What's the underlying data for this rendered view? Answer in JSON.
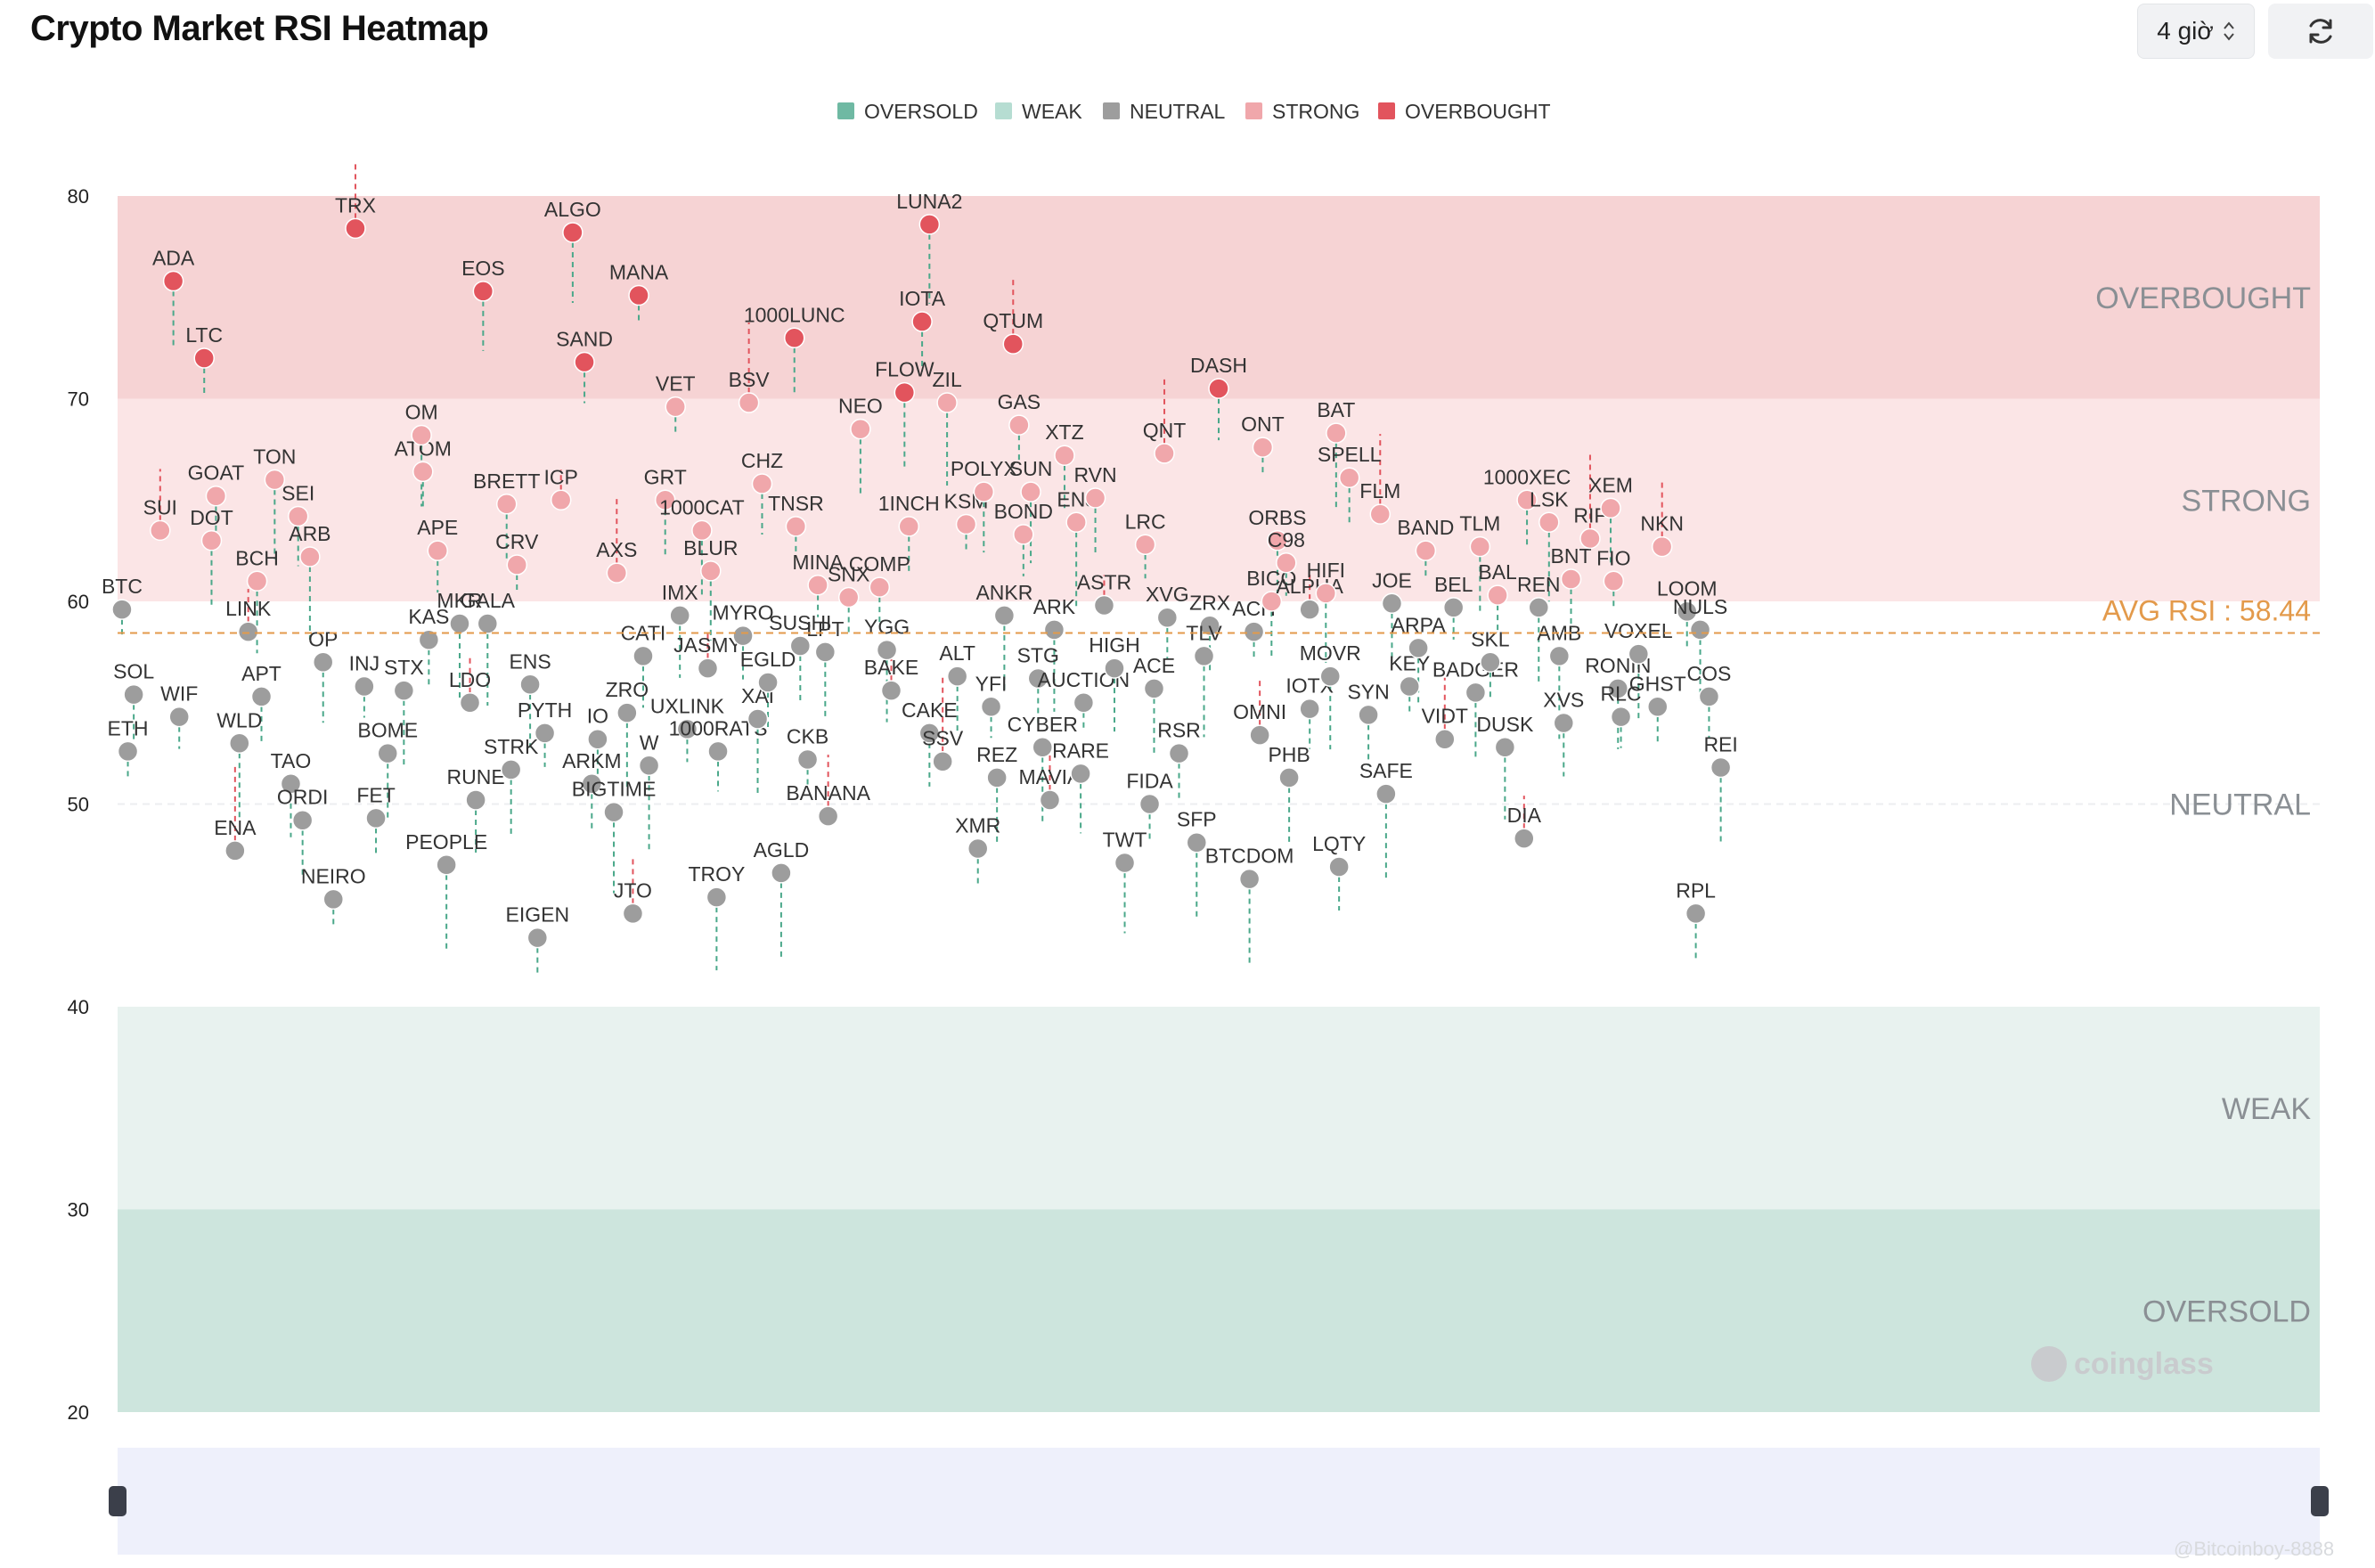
{
  "header": {
    "title": "Crypto Market RSI Heatmap",
    "interval": "4 giờ"
  },
  "icons": {
    "interval": "chevron-updown-icon",
    "refresh": "refresh-icon",
    "logo": "coinglass-logo-icon"
  },
  "colors": {
    "oversold": "#6fb9a3",
    "weak": "#b6ddd2",
    "neutral": "#9d9d9d",
    "strong": "#f0a7ab",
    "overbought": "#e2545d",
    "avg_line": "#e39a4b",
    "band_overbought": "#f6d3d4",
    "band_strong": "#fbe5e6",
    "band_weak": "#e8f2ef",
    "band_oversold": "#cde5dd"
  },
  "watermark": {
    "brand": "coinglass",
    "footer": "@Bitcoinboy-8888"
  },
  "chart_data": {
    "type": "scatter",
    "title": "Crypto Market RSI Heatmap",
    "ylim": [
      20,
      80
    ],
    "yticks": [
      20,
      30,
      40,
      50,
      60,
      70,
      80
    ],
    "legend_position": "top-center",
    "legend": [
      "OVERSOLD",
      "WEAK",
      "NEUTRAL",
      "STRONG",
      "OVERBOUGHT"
    ],
    "zones": [
      {
        "name": "OVERBOUGHT",
        "from": 70,
        "to": 80
      },
      {
        "name": "STRONG",
        "from": 60,
        "to": 70
      },
      {
        "name": "NEUTRAL",
        "from": 40,
        "to": 60
      },
      {
        "name": "WEAK",
        "from": 30,
        "to": 40
      },
      {
        "name": "OVERSOLD",
        "from": 20,
        "to": 30
      }
    ],
    "avg_rsi": 58.44,
    "avg_label": "AVG RSI : 58.44",
    "x_range": [
      0,
      1500
    ],
    "points": [
      {
        "label": "BTC",
        "x": 3,
        "rsi": 59.6
      },
      {
        "label": "SOL",
        "x": 11,
        "rsi": 55.4
      },
      {
        "label": "ETH",
        "x": 7,
        "rsi": 52.6
      },
      {
        "label": "SUI",
        "x": 29,
        "rsi": 63.5
      },
      {
        "label": "WIF",
        "x": 42,
        "rsi": 54.3
      },
      {
        "label": "ADA",
        "x": 38,
        "rsi": 75.8
      },
      {
        "label": "LTC",
        "x": 59,
        "rsi": 72.0
      },
      {
        "label": "DOT",
        "x": 64,
        "rsi": 63.0
      },
      {
        "label": "GOAT",
        "x": 67,
        "rsi": 65.2
      },
      {
        "label": "BCH",
        "x": 95,
        "rsi": 61.0
      },
      {
        "label": "LINK",
        "x": 89,
        "rsi": 58.5
      },
      {
        "label": "WLD",
        "x": 83,
        "rsi": 53.0
      },
      {
        "label": "APT",
        "x": 98,
        "rsi": 55.3
      },
      {
        "label": "TON",
        "x": 107,
        "rsi": 66.0
      },
      {
        "label": "SEI",
        "x": 123,
        "rsi": 64.2
      },
      {
        "label": "ARB",
        "x": 131,
        "rsi": 62.2
      },
      {
        "label": "TAO",
        "x": 118,
        "rsi": 51.0
      },
      {
        "label": "ENA",
        "x": 80,
        "rsi": 47.7
      },
      {
        "label": "ORDI",
        "x": 126,
        "rsi": 49.2
      },
      {
        "label": "NEIRO",
        "x": 147,
        "rsi": 45.3
      },
      {
        "label": "OP",
        "x": 140,
        "rsi": 57.0
      },
      {
        "label": "INJ",
        "x": 168,
        "rsi": 55.8
      },
      {
        "label": "BOME",
        "x": 184,
        "rsi": 52.5
      },
      {
        "label": "FET",
        "x": 176,
        "rsi": 49.3
      },
      {
        "label": "TRX",
        "x": 162,
        "rsi": 78.4
      },
      {
        "label": "ATOM",
        "x": 208,
        "rsi": 66.4
      },
      {
        "label": "OM",
        "x": 207,
        "rsi": 68.2
      },
      {
        "label": "APE",
        "x": 218,
        "rsi": 62.5
      },
      {
        "label": "STX",
        "x": 195,
        "rsi": 55.6
      },
      {
        "label": "KAS",
        "x": 212,
        "rsi": 58.1
      },
      {
        "label": "MKR",
        "x": 233,
        "rsi": 58.9
      },
      {
        "label": "LDO",
        "x": 240,
        "rsi": 55.0
      },
      {
        "label": "GALA",
        "x": 252,
        "rsi": 58.9
      },
      {
        "label": "RUNE",
        "x": 244,
        "rsi": 50.2
      },
      {
        "label": "PEOPLE",
        "x": 224,
        "rsi": 47.0
      },
      {
        "label": "BRETT",
        "x": 265,
        "rsi": 64.8
      },
      {
        "label": "CRV",
        "x": 272,
        "rsi": 61.8
      },
      {
        "label": "EOS",
        "x": 249,
        "rsi": 75.3
      },
      {
        "label": "ICP",
        "x": 302,
        "rsi": 65.0
      },
      {
        "label": "ENS",
        "x": 281,
        "rsi": 55.9
      },
      {
        "label": "PYTH",
        "x": 291,
        "rsi": 53.5
      },
      {
        "label": "STRK",
        "x": 268,
        "rsi": 51.7
      },
      {
        "label": "EIGEN",
        "x": 286,
        "rsi": 43.4
      },
      {
        "label": "ALGO",
        "x": 310,
        "rsi": 78.2
      },
      {
        "label": "SAND",
        "x": 318,
        "rsi": 71.8
      },
      {
        "label": "AXS",
        "x": 340,
        "rsi": 61.4
      },
      {
        "label": "IO",
        "x": 327,
        "rsi": 53.2
      },
      {
        "label": "ZRO",
        "x": 347,
        "rsi": 54.5
      },
      {
        "label": "ARKM",
        "x": 323,
        "rsi": 51.0
      },
      {
        "label": "BIGTIME",
        "x": 338,
        "rsi": 49.6
      },
      {
        "label": "CATI",
        "x": 358,
        "rsi": 57.3
      },
      {
        "label": "W",
        "x": 362,
        "rsi": 51.9
      },
      {
        "label": "JTO",
        "x": 351,
        "rsi": 44.6
      },
      {
        "label": "MANA",
        "x": 355,
        "rsi": 75.1
      },
      {
        "label": "GRT",
        "x": 373,
        "rsi": 65.0
      },
      {
        "label": "VET",
        "x": 380,
        "rsi": 69.6
      },
      {
        "label": "IMX",
        "x": 383,
        "rsi": 59.3
      },
      {
        "label": "UXLINK",
        "x": 388,
        "rsi": 53.7
      },
      {
        "label": "1000CAT",
        "x": 398,
        "rsi": 63.5
      },
      {
        "label": "JASMY",
        "x": 402,
        "rsi": 56.7
      },
      {
        "label": "BLUR",
        "x": 404,
        "rsi": 61.5
      },
      {
        "label": "1000RATS",
        "x": 409,
        "rsi": 52.6
      },
      {
        "label": "TROY",
        "x": 408,
        "rsi": 45.4
      },
      {
        "label": "MYRO",
        "x": 426,
        "rsi": 58.3
      },
      {
        "label": "XAI",
        "x": 436,
        "rsi": 54.2
      },
      {
        "label": "EGLD",
        "x": 443,
        "rsi": 56.0
      },
      {
        "label": "BSV",
        "x": 430,
        "rsi": 69.8
      },
      {
        "label": "CHZ",
        "x": 439,
        "rsi": 65.8
      },
      {
        "label": "AGLD",
        "x": 452,
        "rsi": 46.6
      },
      {
        "label": "1000LUNC",
        "x": 461,
        "rsi": 73.0
      },
      {
        "label": "TNSR",
        "x": 462,
        "rsi": 63.7
      },
      {
        "label": "SUSHI",
        "x": 465,
        "rsi": 57.8
      },
      {
        "label": "CKB",
        "x": 470,
        "rsi": 52.2
      },
      {
        "label": "BANANA",
        "x": 484,
        "rsi": 49.4
      },
      {
        "label": "MINA",
        "x": 477,
        "rsi": 60.8
      },
      {
        "label": "LPT",
        "x": 482,
        "rsi": 57.5
      },
      {
        "label": "SNX",
        "x": 498,
        "rsi": 60.2
      },
      {
        "label": "NEO",
        "x": 506,
        "rsi": 68.5
      },
      {
        "label": "COMP",
        "x": 519,
        "rsi": 60.7
      },
      {
        "label": "YGG",
        "x": 524,
        "rsi": 57.6
      },
      {
        "label": "BAKE",
        "x": 527,
        "rsi": 55.6
      },
      {
        "label": "FLOW",
        "x": 536,
        "rsi": 70.3
      },
      {
        "label": "1INCH",
        "x": 539,
        "rsi": 63.7
      },
      {
        "label": "LUNA2",
        "x": 553,
        "rsi": 78.6
      },
      {
        "label": "IOTA",
        "x": 548,
        "rsi": 73.8
      },
      {
        "label": "ZIL",
        "x": 565,
        "rsi": 69.8
      },
      {
        "label": "CAKE",
        "x": 553,
        "rsi": 53.5
      },
      {
        "label": "SSV",
        "x": 562,
        "rsi": 52.1
      },
      {
        "label": "ALT",
        "x": 572,
        "rsi": 56.3
      },
      {
        "label": "KSM",
        "x": 578,
        "rsi": 63.8
      },
      {
        "label": "POLYX",
        "x": 590,
        "rsi": 65.4
      },
      {
        "label": "YFI",
        "x": 595,
        "rsi": 54.8
      },
      {
        "label": "REZ",
        "x": 599,
        "rsi": 51.3
      },
      {
        "label": "XMR",
        "x": 586,
        "rsi": 47.8
      },
      {
        "label": "QTUM",
        "x": 610,
        "rsi": 72.7
      },
      {
        "label": "GAS",
        "x": 614,
        "rsi": 68.7
      },
      {
        "label": "SUN",
        "x": 622,
        "rsi": 65.4
      },
      {
        "label": "BOND",
        "x": 617,
        "rsi": 63.3
      },
      {
        "label": "ANKR",
        "x": 604,
        "rsi": 59.3
      },
      {
        "label": "STG",
        "x": 627,
        "rsi": 56.2
      },
      {
        "label": "CYBER",
        "x": 630,
        "rsi": 52.8
      },
      {
        "label": "MAVIA",
        "x": 635,
        "rsi": 50.2
      },
      {
        "label": "ARK",
        "x": 638,
        "rsi": 58.6
      },
      {
        "label": "XTZ",
        "x": 645,
        "rsi": 67.2
      },
      {
        "label": "ENJ",
        "x": 653,
        "rsi": 63.9
      },
      {
        "label": "RVN",
        "x": 666,
        "rsi": 65.1
      },
      {
        "label": "AUCTION",
        "x": 658,
        "rsi": 55.0
      },
      {
        "label": "RARE",
        "x": 656,
        "rsi": 51.5
      },
      {
        "label": "ASTR",
        "x": 672,
        "rsi": 59.8
      },
      {
        "label": "HIGH",
        "x": 679,
        "rsi": 56.7
      },
      {
        "label": "LRC",
        "x": 700,
        "rsi": 62.8
      },
      {
        "label": "ACE",
        "x": 706,
        "rsi": 55.7
      },
      {
        "label": "FIDA",
        "x": 703,
        "rsi": 50.0
      },
      {
        "label": "TWT",
        "x": 686,
        "rsi": 47.1
      },
      {
        "label": "XVG",
        "x": 715,
        "rsi": 59.2
      },
      {
        "label": "QNT",
        "x": 713,
        "rsi": 67.3
      },
      {
        "label": "RSR",
        "x": 723,
        "rsi": 52.5
      },
      {
        "label": "SFP",
        "x": 735,
        "rsi": 48.1
      },
      {
        "label": "ZRX",
        "x": 744,
        "rsi": 58.8
      },
      {
        "label": "TLV",
        "x": 740,
        "rsi": 57.3
      },
      {
        "label": "DASH",
        "x": 750,
        "rsi": 70.5
      },
      {
        "label": "BTCDOM",
        "x": 771,
        "rsi": 46.3
      },
      {
        "label": "OMNI",
        "x": 778,
        "rsi": 53.4
      },
      {
        "label": "ACH",
        "x": 774,
        "rsi": 58.5
      },
      {
        "label": "BICO",
        "x": 786,
        "rsi": 60.0
      },
      {
        "label": "ONT",
        "x": 780,
        "rsi": 67.6
      },
      {
        "label": "ORBS",
        "x": 790,
        "rsi": 63.0
      },
      {
        "label": "C98",
        "x": 796,
        "rsi": 61.9
      },
      {
        "label": "PHB",
        "x": 798,
        "rsi": 51.3
      },
      {
        "label": "ALPHA",
        "x": 812,
        "rsi": 59.6
      },
      {
        "label": "HIFI",
        "x": 823,
        "rsi": 60.4
      },
      {
        "label": "IOTX",
        "x": 812,
        "rsi": 54.7
      },
      {
        "label": "MOVR",
        "x": 826,
        "rsi": 56.3
      },
      {
        "label": "LQTY",
        "x": 832,
        "rsi": 46.9
      },
      {
        "label": "BAT",
        "x": 830,
        "rsi": 68.3
      },
      {
        "label": "SPELL",
        "x": 839,
        "rsi": 66.1
      },
      {
        "label": "FLM",
        "x": 860,
        "rsi": 64.3
      },
      {
        "label": "SYN",
        "x": 852,
        "rsi": 54.4
      },
      {
        "label": "SAFE",
        "x": 864,
        "rsi": 50.5
      },
      {
        "label": "JOE",
        "x": 868,
        "rsi": 59.9
      },
      {
        "label": "KEY",
        "x": 880,
        "rsi": 55.8
      },
      {
        "label": "ARPA",
        "x": 886,
        "rsi": 57.7
      },
      {
        "label": "BAND",
        "x": 891,
        "rsi": 62.5
      },
      {
        "label": "VIDT",
        "x": 904,
        "rsi": 53.2
      },
      {
        "label": "BEL",
        "x": 910,
        "rsi": 59.7
      },
      {
        "label": "BADGER",
        "x": 925,
        "rsi": 55.5
      },
      {
        "label": "SKL",
        "x": 935,
        "rsi": 57.0
      },
      {
        "label": "TLM",
        "x": 928,
        "rsi": 62.7
      },
      {
        "label": "BAL",
        "x": 940,
        "rsi": 60.3
      },
      {
        "label": "DUSK",
        "x": 945,
        "rsi": 52.8
      },
      {
        "label": "DIA",
        "x": 958,
        "rsi": 48.3
      },
      {
        "label": "REN",
        "x": 968,
        "rsi": 59.7
      },
      {
        "label": "1000XEC",
        "x": 960,
        "rsi": 65.0
      },
      {
        "label": "LSK",
        "x": 975,
        "rsi": 63.9
      },
      {
        "label": "BNT",
        "x": 990,
        "rsi": 61.1
      },
      {
        "label": "AMB",
        "x": 982,
        "rsi": 57.3
      },
      {
        "label": "XVS",
        "x": 985,
        "rsi": 54.0
      },
      {
        "label": "RIF",
        "x": 1003,
        "rsi": 63.1
      },
      {
        "label": "XEM",
        "x": 1017,
        "rsi": 64.6
      },
      {
        "label": "FIO",
        "x": 1019,
        "rsi": 61.0
      },
      {
        "label": "RONIN",
        "x": 1022,
        "rsi": 55.7
      },
      {
        "label": "RLC",
        "x": 1024,
        "rsi": 54.3
      },
      {
        "label": "VOXEL",
        "x": 1036,
        "rsi": 57.4
      },
      {
        "label": "GHST",
        "x": 1049,
        "rsi": 54.8
      },
      {
        "label": "NKN",
        "x": 1052,
        "rsi": 62.7
      },
      {
        "label": "LOOM",
        "x": 1069,
        "rsi": 59.5
      },
      {
        "label": "NULS",
        "x": 1078,
        "rsi": 58.6
      },
      {
        "label": "COS",
        "x": 1084,
        "rsi": 55.3
      },
      {
        "label": "REI",
        "x": 1092,
        "rsi": 51.8
      },
      {
        "label": "RPL",
        "x": 1075,
        "rsi": 44.6
      }
    ]
  }
}
